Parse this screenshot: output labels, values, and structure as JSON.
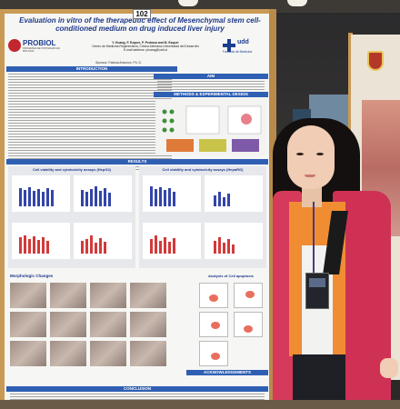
{
  "poster": {
    "number": "102",
    "title": "Evaluation in vitro of the therapeutic effect of Mesenchymal stem cell-conditioned medium on drug induced liver injury",
    "authors": "Y. Huang, F. Ezquer, P. Pedraza and M. Ezquer",
    "institution": "Centro de Medicina Regenerativa, Clínica Alemana-Universidad del Desarrollo",
    "email": "E-mail address: yhuang@udd.cl",
    "sponsor": "Sponsor: Fabiola Ansunce, Ph. D.",
    "logo_left": "PROBIOL",
    "logo_left_sub": "PROGRAMA DE POSTGRADO EN BIOLOGIA",
    "logo_right": "udd",
    "logo_right_sub": "Facultad de Medicina",
    "sections": {
      "introduction": "INTRODUCTION",
      "aim": "AIM",
      "methods": "METHODS & EXPERIMENTAL DESIGN",
      "results": "RESULTS",
      "hepg2": "Cell viability and cytotoxicity assays (HepG2)",
      "hepar": "Cell viability and cytotoxicity assays (HepaRG)",
      "morphology": "Morphologic Changes",
      "apoptosis": "Analysis of Cell apoptosis",
      "conclusion": "CONCLUSION",
      "acknowledgements": "ACKNOWLEDGEMENTS"
    }
  }
}
